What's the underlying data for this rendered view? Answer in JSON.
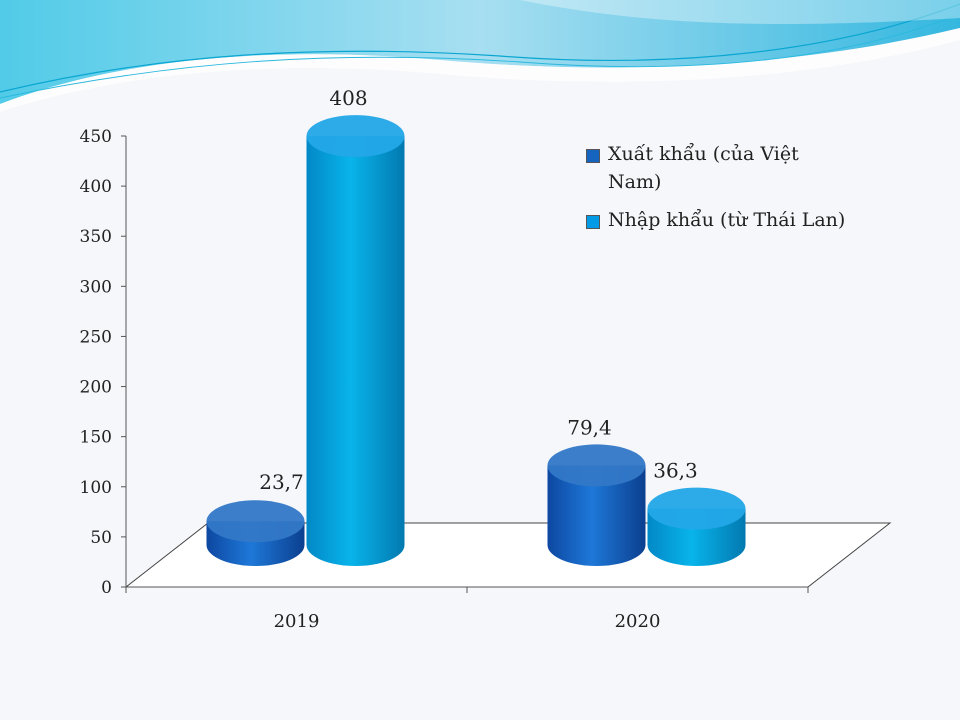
{
  "chart_data": {
    "type": "bar",
    "categories": [
      "2019",
      "2020"
    ],
    "series": [
      {
        "name": "Xuất khẩu (của Việt Nam)",
        "values": [
          23.7,
          79.4
        ],
        "labels": [
          "23,7",
          "79,4"
        ],
        "color": "#1565c0"
      },
      {
        "name": "Nhập khẩu (từ Thái Lan)",
        "values": [
          408,
          36.3
        ],
        "labels": [
          "408",
          "36,3"
        ],
        "color": "#039be5"
      }
    ],
    "ylim": [
      0,
      450
    ],
    "yticks": [
      "0",
      "50",
      "100",
      "150",
      "200",
      "250",
      "300",
      "350",
      "400",
      "450"
    ],
    "title": "",
    "xlabel": "",
    "ylabel": "",
    "legend_position": "top-right",
    "style": "3d-cylinder"
  },
  "background": {
    "color": "#f5f7fa",
    "wave_colors": [
      "#4fc3e8",
      "#0aa6d1",
      "#b3e5fc"
    ]
  }
}
